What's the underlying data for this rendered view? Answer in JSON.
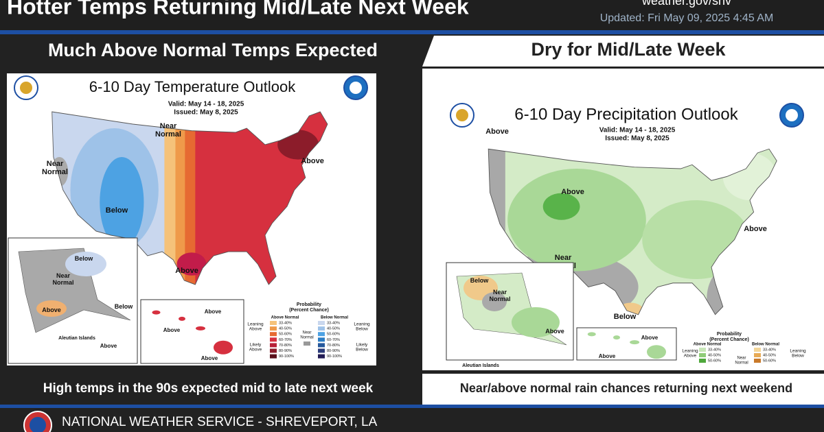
{
  "header": {
    "title": "Hotter Temps Returning Mid/Late Next Week",
    "website": "weather.gov/shv",
    "updated": "Updated: Fri May 09, 2025 4:45 AM"
  },
  "panels": [
    {
      "heading": "Much Above Normal Temps Expected",
      "map": {
        "title": "6-10 Day Temperature Outlook",
        "valid": "Valid:  May 14 - 18, 2025",
        "issued": "Issued:  May 8, 2025",
        "labels": [
          "Near Normal",
          "Near Normal",
          "Below",
          "Above",
          "Above"
        ],
        "alaska_labels": [
          "Below",
          "Near Normal",
          "Above",
          "Below"
        ],
        "aleutian": "Aleutian Islands",
        "aleutian_labels": [
          "Above"
        ],
        "hawaii_labels": [
          "Above",
          "Above",
          "Above"
        ],
        "legend": {
          "title": [
            "Probability",
            "(Percent Chance)"
          ],
          "above_header": "Above Normal",
          "below_header": "Below Normal",
          "leaning_above": "Leaning Above",
          "likely_above": "Likely Above",
          "near_normal": "Near Normal",
          "leaning_below": "Leaning Below",
          "likely_below": "Likely Below",
          "above_ranges": [
            "33-40%",
            "40-50%",
            "50-60%",
            "60-70%",
            "70-80%",
            "80-90%",
            "90-100%"
          ],
          "below_ranges": [
            "33-40%",
            "40-50%",
            "50-60%",
            "60-70%",
            "70-80%",
            "80-90%",
            "90-100%"
          ]
        }
      },
      "caption": "High temps in the 90s expected mid to late next week"
    },
    {
      "heading": "Dry for Mid/Late Week",
      "map": {
        "title": "6-10 Day Precipitation Outlook",
        "valid": "Valid:  May 14 - 18, 2025",
        "issued": "Issued:  May 8, 2025",
        "labels": [
          "Above",
          "Above",
          "Above",
          "Near Normal",
          "Below"
        ],
        "alaska_labels": [
          "Below",
          "Near Normal",
          "Above"
        ],
        "aleutian": "Aleutian Islands",
        "aleutian_labels": [],
        "hawaii_labels": [
          "Above",
          "Above"
        ],
        "legend": {
          "title": [
            "Probability",
            "(Percent Chance)"
          ],
          "above_header": "Above Normal",
          "below_header": "Below Normal",
          "leaning_above": "Leaning Above",
          "near_normal": "Near Normal",
          "leaning_below": "Leaning Below",
          "above_ranges": [
            "33-40%",
            "40-50%",
            "50-60%"
          ],
          "below_ranges": [
            "33-40%",
            "40-50%",
            "50-60%"
          ]
        }
      },
      "caption": "Near/above normal rain chances returning next weekend"
    }
  ],
  "footer": "NATIONAL WEATHER SERVICE - SHREVEPORT, LA"
}
